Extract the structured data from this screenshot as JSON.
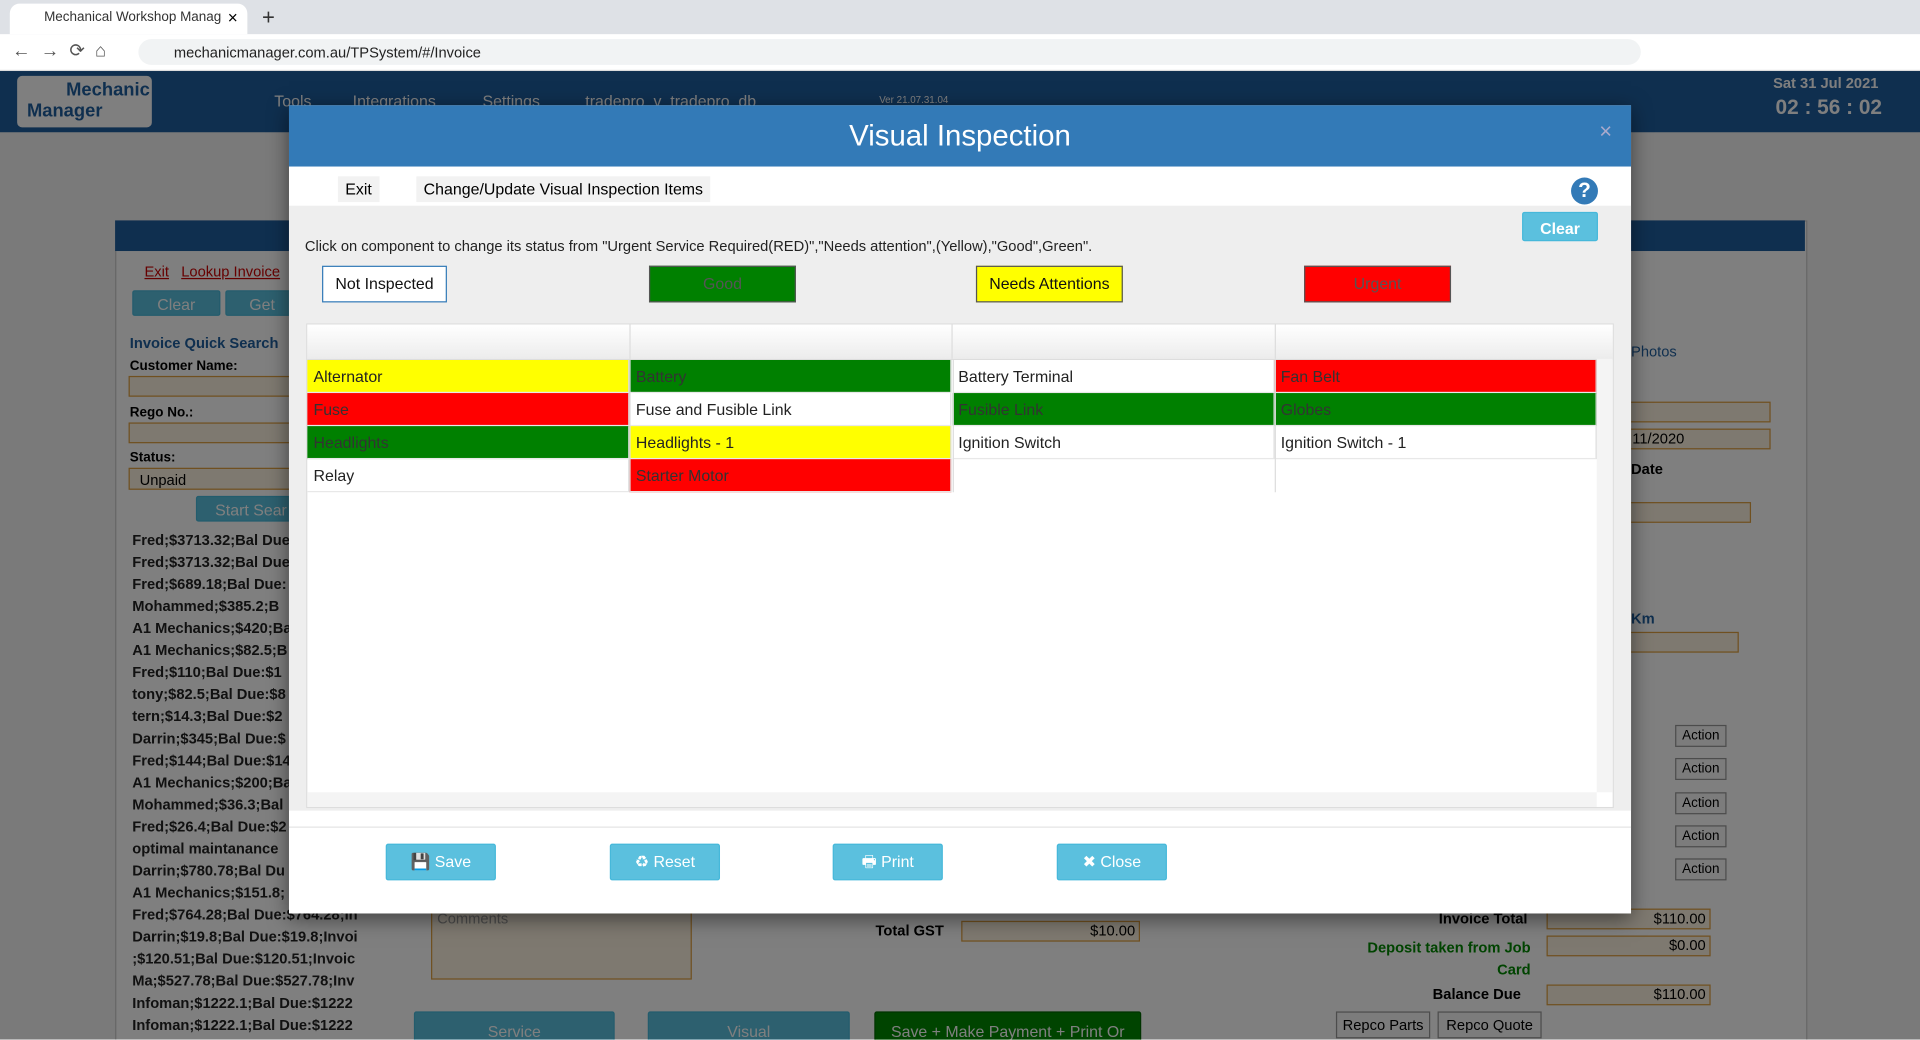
{
  "browser": {
    "tab_title": "Mechanical Workshop Managem",
    "url": "mechanicmanager.com.au/TPSystem/#/Invoice"
  },
  "app": {
    "logo": [
      "Mechanic",
      "Manager"
    ],
    "nav": [
      "Tools",
      "Integrations",
      "Settings",
      "tradepro_v_tradepro_db"
    ],
    "version": "Ver 21.07.31.04",
    "date": "Sat 31 Jul 2021",
    "time": "02 : 56 : 02",
    "left": {
      "links": [
        "Exit",
        "Lookup Invoice"
      ],
      "buttons": [
        "Clear",
        "Get"
      ],
      "heading": "Invoice Quick Search",
      "labels": [
        "Customer Name:",
        "Rego No.:",
        "Status:"
      ],
      "status_value": "Unpaid",
      "search": "Start Sear",
      "list": [
        "Fred;$3713.32;Bal Due",
        "Fred;$3713.32;Bal Due",
        "Fred;$689.18;Bal Due:",
        "Mohammed;$385.2;B",
        "A1 Mechanics;$420;Ba",
        "A1 Mechanics;$82.5;B",
        "Fred;$110;Bal Due:$1",
        "tony;$82.5;Bal Due:$8",
        "tern;$14.3;Bal Due:$2",
        "Darrin;$345;Bal Due:$",
        "Fred;$144;Bal Due:$14",
        "A1 Mechanics;$200;Ba",
        "Mohammed;$36.3;Bal",
        "Fred;$26.4;Bal Due:$2",
        "optimal maintanance",
        "Darrin;$780.78;Bal Du",
        "A1 Mechanics;$151.8;",
        "Fred;$764.28;Bal Due:$764.28;In",
        "Darrin;$19.8;Bal Due:$19.8;Invoi",
        ";$120.51;Bal Due:$120.51;Invoic",
        "Ma;$527.78;Bal Due:$527.78;Inv",
        "Infoman;$1222.1;Bal Due:$1222",
        "Infoman;$1222.1;Bal Due:$1222"
      ]
    },
    "right": {
      "photos": "Photos",
      "date_value": "11/2020",
      "date_label": "Date",
      "km": "Km",
      "actions": [
        "Action",
        "Action",
        "Action",
        "Action",
        "Action"
      ]
    },
    "bottom": {
      "comments": "Comments",
      "total_gst_label": "Total GST",
      "total_gst": "$10.00",
      "invoice_total_label": "Invoice Total",
      "invoice_total": "$110.00",
      "deposit_label": "Deposit taken from Job Card",
      "deposit": "$0.00",
      "balance_label": "Balance Due",
      "balance": "$110.00",
      "buttons": [
        "Repco Parts",
        "Repco Quote"
      ],
      "tabs": [
        "Service",
        "Visual",
        "Save + Make Payment + Print Or"
      ]
    }
  },
  "modal": {
    "title": "Visual Inspection",
    "menu": [
      "Exit",
      "Change/Update Visual Inspection Items"
    ],
    "clear": "Clear",
    "instruction": "Click on component to change its status from \"Urgent Service Required(RED)\",\"Needs attention\",(Yellow),\"Good\",Green\".",
    "legend": [
      {
        "label": "Not Inspected",
        "color": "#ffffff"
      },
      {
        "label": "Good",
        "color": "#008000"
      },
      {
        "label": "Needs Attentions",
        "color": "#ffff00"
      },
      {
        "label": "Urgent",
        "color": "#ff0000"
      }
    ],
    "items": [
      {
        "name": "Alternator",
        "status": 2
      },
      {
        "name": "Battery",
        "status": 1
      },
      {
        "name": "Battery Terminal",
        "status": 0
      },
      {
        "name": "Fan Belt",
        "status": 3
      },
      {
        "name": "Fuse",
        "status": 3
      },
      {
        "name": "Fuse and Fusible Link",
        "status": 0
      },
      {
        "name": "Fusible Link",
        "status": 1
      },
      {
        "name": "Globes",
        "status": 1
      },
      {
        "name": "Headlights",
        "status": 1
      },
      {
        "name": "Headlights - 1",
        "status": 2
      },
      {
        "name": "Ignition Switch",
        "status": 0
      },
      {
        "name": "Ignition Switch - 1",
        "status": 0
      },
      {
        "name": "Relay",
        "status": 0
      },
      {
        "name": "Starter Motor",
        "status": 3
      }
    ],
    "buttons": [
      "Save",
      "Reset",
      "Print",
      "Close"
    ]
  }
}
